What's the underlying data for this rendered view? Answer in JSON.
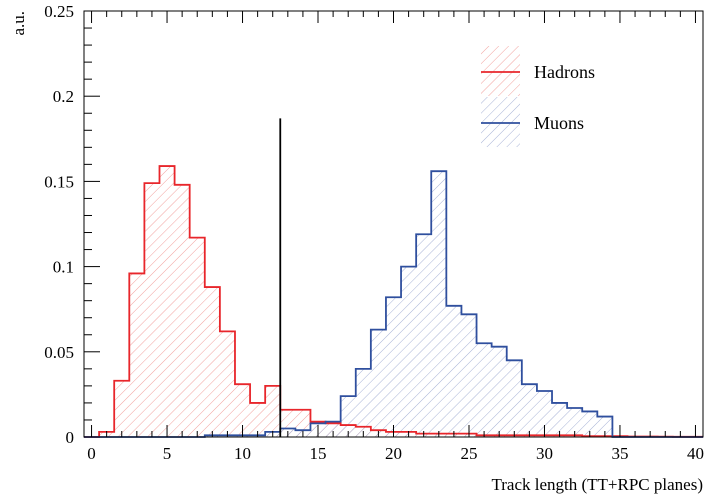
{
  "chart_data": {
    "type": "bar",
    "subtype": "histogram",
    "xlabel": "Track length (TT+RPC planes)",
    "ylabel": "a.u.",
    "xlim": [
      -0.5,
      40.5
    ],
    "ylim": [
      0,
      0.25
    ],
    "x_ticks": [
      "0",
      "5",
      "10",
      "15",
      "20",
      "25",
      "30",
      "35",
      "40"
    ],
    "y_ticks": [
      "0",
      "0.05",
      "0.1",
      "0.15",
      "0.2",
      "0.25"
    ],
    "grid": false,
    "legend_position": "top-right",
    "bin_edges_start": -0.5,
    "bin_width": 1,
    "cut_line": {
      "x": 12.5,
      "y_top": 0.187,
      "color": "#000000"
    },
    "series": [
      {
        "name": "Hadrons",
        "color": "#e8262b",
        "fill": "hatched",
        "values": [
          0.0,
          0.003,
          0.033,
          0.096,
          0.149,
          0.159,
          0.148,
          0.117,
          0.088,
          0.062,
          0.031,
          0.02,
          0.03,
          0.016,
          0.016,
          0.009,
          0.008,
          0.007,
          0.006,
          0.004,
          0.003,
          0.003,
          0.002,
          0.002,
          0.002,
          0.002,
          0.001,
          0.001,
          0.001,
          0.001,
          0.001,
          0.001,
          0.001,
          0.0005,
          0.0005,
          0.0005,
          0.0003,
          0.0003,
          0.0002,
          0.0001,
          0.0001
        ]
      },
      {
        "name": "Muons",
        "color": "#2f4f9e",
        "fill": "hatched",
        "values": [
          0.0,
          0.0,
          0.0,
          0.0,
          0.0,
          0.0,
          0.0,
          0.0,
          0.001,
          0.001,
          0.001,
          0.001,
          0.003,
          0.005,
          0.004,
          0.008,
          0.009,
          0.024,
          0.04,
          0.063,
          0.082,
          0.1,
          0.119,
          0.156,
          0.077,
          0.072,
          0.055,
          0.053,
          0.045,
          0.031,
          0.027,
          0.02,
          0.017,
          0.015,
          0.012,
          0.0,
          0.0,
          0.0,
          0.0,
          0.0,
          0.0
        ]
      }
    ]
  }
}
